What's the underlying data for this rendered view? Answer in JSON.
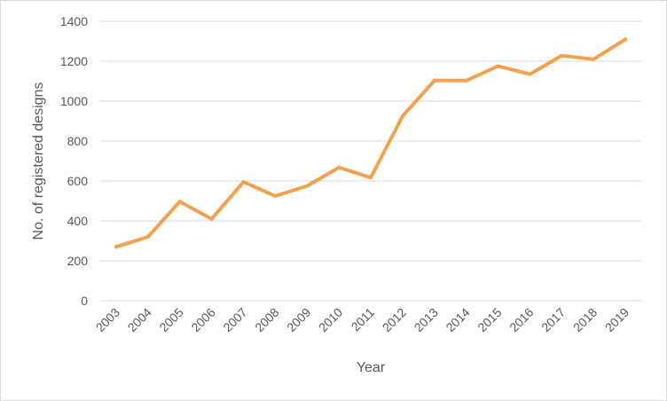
{
  "chart_data": {
    "type": "line",
    "title": "",
    "xlabel": "Year",
    "ylabel": "No. of registered designs",
    "categories": [
      "2003",
      "2004",
      "2005",
      "2006",
      "2007",
      "2008",
      "2009",
      "2010",
      "2011",
      "2012",
      "2013",
      "2014",
      "2015",
      "2016",
      "2017",
      "2018",
      "2019"
    ],
    "series": [
      {
        "values": [
          270,
          320,
          497,
          410,
          595,
          525,
          575,
          668,
          617,
          925,
          1103,
          1103,
          1175,
          1135,
          1228,
          1210,
          1310
        ]
      }
    ],
    "ylim": [
      0,
      1400
    ],
    "yticks": [
      0,
      200,
      400,
      600,
      800,
      1000,
      1200,
      1400
    ],
    "grid": true,
    "legend": "none",
    "colors": {
      "line": "#f4a14f",
      "grid": "#d9d9d9",
      "text": "#595959"
    }
  }
}
